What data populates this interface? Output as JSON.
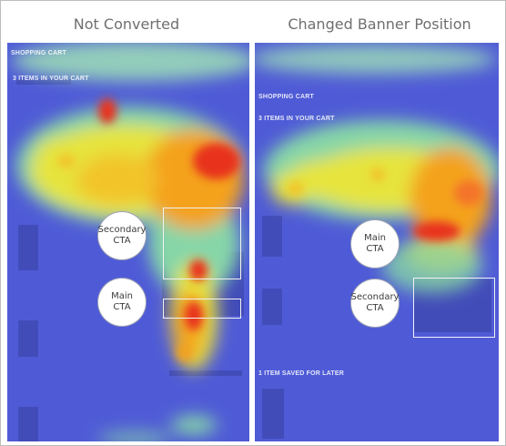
{
  "left": {
    "title": "Not Converted",
    "shop_header": "SHOPPING CART",
    "cart_label": "3 ITEMS IN YOUR CART",
    "secondary_cta": {
      "line1": "Secondary",
      "line2": "CTA"
    },
    "main_cta": {
      "line1": "Main",
      "line2": "CTA"
    }
  },
  "right": {
    "title": "Changed Banner Position",
    "shop_header": "SHOPPING CART",
    "cart_label": "3 ITEMS IN YOUR CART",
    "saved_label": "1 ITEM SAVED FOR LATER",
    "main_cta": {
      "line1": "Main",
      "line2": "CTA"
    },
    "secondary_cta": {
      "line1": "Secondary",
      "line2": "CTA"
    }
  },
  "colors": {
    "heat_base": "#4f5bd6",
    "hot": "#e8321c",
    "warm": "#f4a21a",
    "mild": "#e8e23a"
  }
}
